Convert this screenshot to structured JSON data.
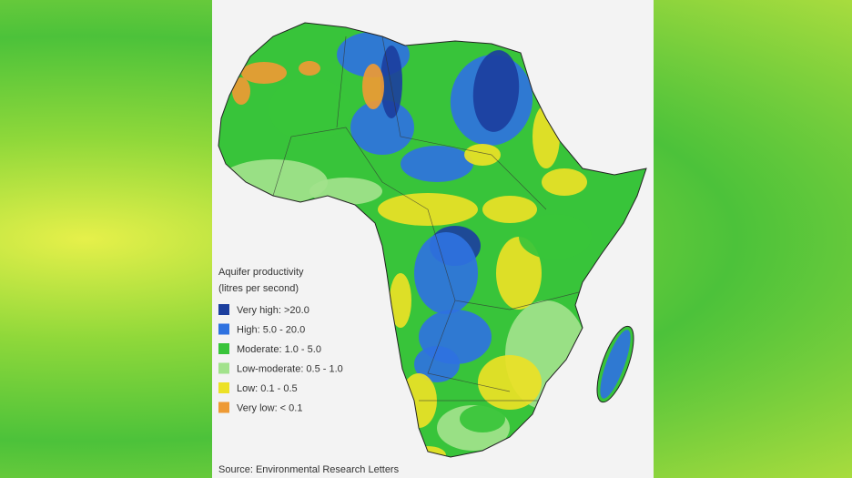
{
  "legend": {
    "title": "Aquifer productivity",
    "subtitle": "(litres per second)",
    "items": [
      {
        "label": "Very high: >20.0",
        "color": "#1c3f9e"
      },
      {
        "label": "High: 5.0 - 20.0",
        "color": "#2f72e0"
      },
      {
        "label": "Moderate: 1.0 - 5.0",
        "color": "#38c43a"
      },
      {
        "label": "Low-moderate: 0.5 - 1.0",
        "color": "#a2e28c"
      },
      {
        "label": "Low: 0.1 - 0.5",
        "color": "#ece126"
      },
      {
        "label": "Very low: < 0.1",
        "color": "#ee9a34"
      }
    ]
  },
  "source": "Source: Environmental Research Letters"
}
